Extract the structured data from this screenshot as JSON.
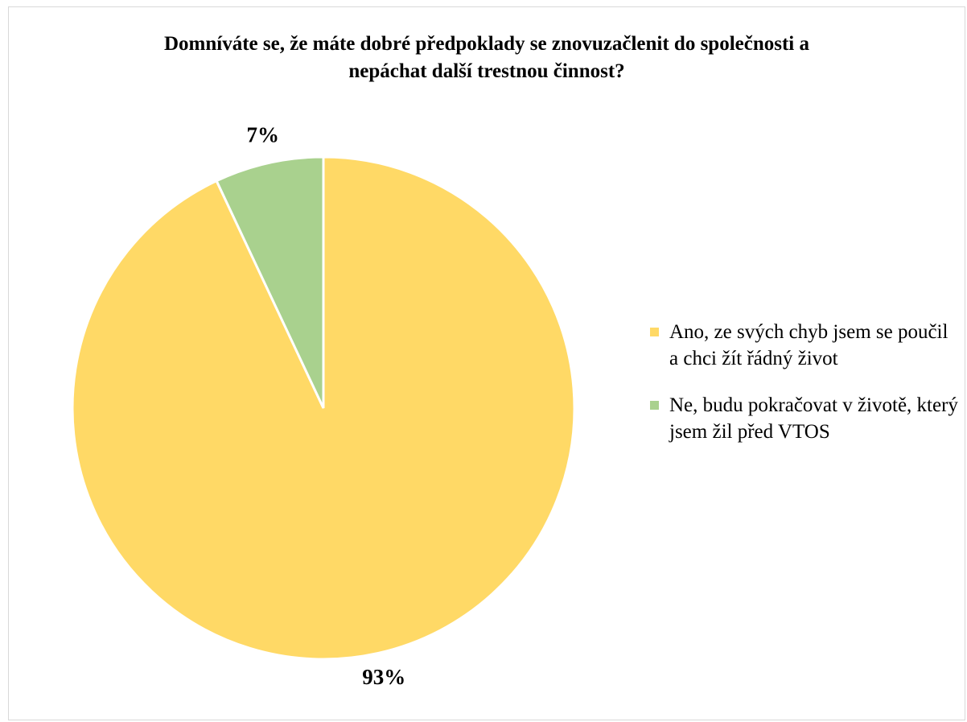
{
  "chart_data": {
    "type": "pie",
    "title": "Domníváte se, že máte dobré předpoklady se znovuzačlenit do společnosti a nepáchat další trestnou činnost?",
    "categories": [
      "Ano, ze svých chyb jsem se poučil a chci žít řádný život",
      "Ne, budu pokračovat v životě, který jsem žil před VTOS"
    ],
    "values": [
      93,
      7
    ],
    "value_labels": [
      "93%",
      "7%"
    ],
    "colors": [
      "#ffd966",
      "#a9d18e"
    ],
    "legend": "right"
  }
}
